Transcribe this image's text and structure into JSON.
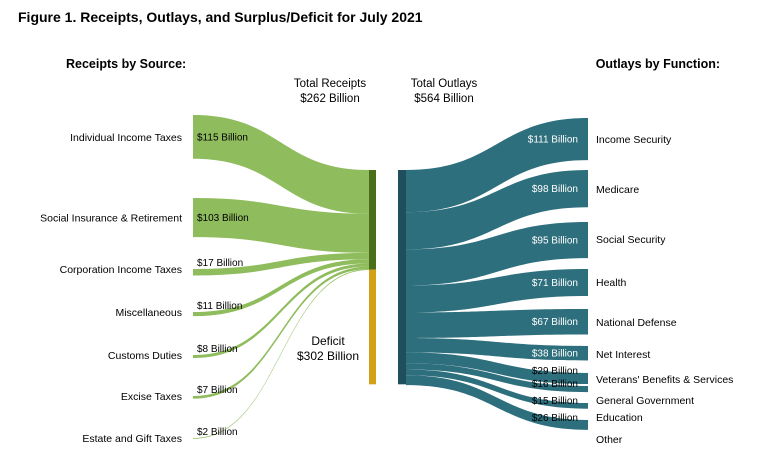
{
  "title": "Figure 1. Receipts, Outlays, and Surplus/Deficit for July 2021",
  "receipts_heading": "Receipts by Source:",
  "outlays_heading": "Outlays by Function:",
  "total_receipts": {
    "line1": "Total Receipts",
    "line2": "$262 Billion"
  },
  "total_outlays": {
    "line1": "Total Outlays",
    "line2": "$564 Billion"
  },
  "deficit": {
    "line1": "Deficit",
    "line2": "$302 Billion"
  },
  "colors": {
    "receipts_flow": "#8fbc5c",
    "receipts_bar": "#4a6e1a",
    "deficit_bar": "#d4a017",
    "outlays_flow": "#2e6f7d",
    "outlays_bar": "#1f4f5c"
  },
  "chart_data": {
    "type": "sankey",
    "units": "Billion",
    "receipts": [
      {
        "label": "Individual Income Taxes",
        "value": 115,
        "value_label": "$115 Billion"
      },
      {
        "label": "Social Insurance & Retirement",
        "value": 103,
        "value_label": "$103 Billion"
      },
      {
        "label": "Corporation Income Taxes",
        "value": 17,
        "value_label": "$17 Billion"
      },
      {
        "label": "Miscellaneous",
        "value": 11,
        "value_label": "$11 Billion"
      },
      {
        "label": "Customs Duties",
        "value": 8,
        "value_label": "$8 Billion"
      },
      {
        "label": "Excise Taxes",
        "value": 7,
        "value_label": "$7 Billion"
      },
      {
        "label": "Estate and Gift Taxes",
        "value": 2,
        "value_label": "$2 Billion"
      }
    ],
    "outlays": [
      {
        "label": "Income Security",
        "value": 111,
        "value_label": "$111 Billion"
      },
      {
        "label": "Medicare",
        "value": 98,
        "value_label": "$98 Billion"
      },
      {
        "label": "Social Security",
        "value": 95,
        "value_label": "$95 Billion"
      },
      {
        "label": "Health",
        "value": 71,
        "value_label": "$71 Billion"
      },
      {
        "label": "National Defense",
        "value": 67,
        "value_label": "$67 Billion"
      },
      {
        "label": "Net Interest",
        "value": 38,
        "value_label": "$38 Billion"
      },
      {
        "label": "Veterans' Benefits & Services",
        "value": 29,
        "value_label": "$29 Billion"
      },
      {
        "label": "General Government",
        "value": 16,
        "value_label": "$16 Billion"
      },
      {
        "label": "Education",
        "value": 15,
        "value_label": "$15 Billion"
      },
      {
        "label": "Other",
        "value": 26,
        "value_label": "$26 Billion"
      }
    ],
    "total_receipts": 262,
    "total_outlays": 564,
    "deficit": 302
  }
}
